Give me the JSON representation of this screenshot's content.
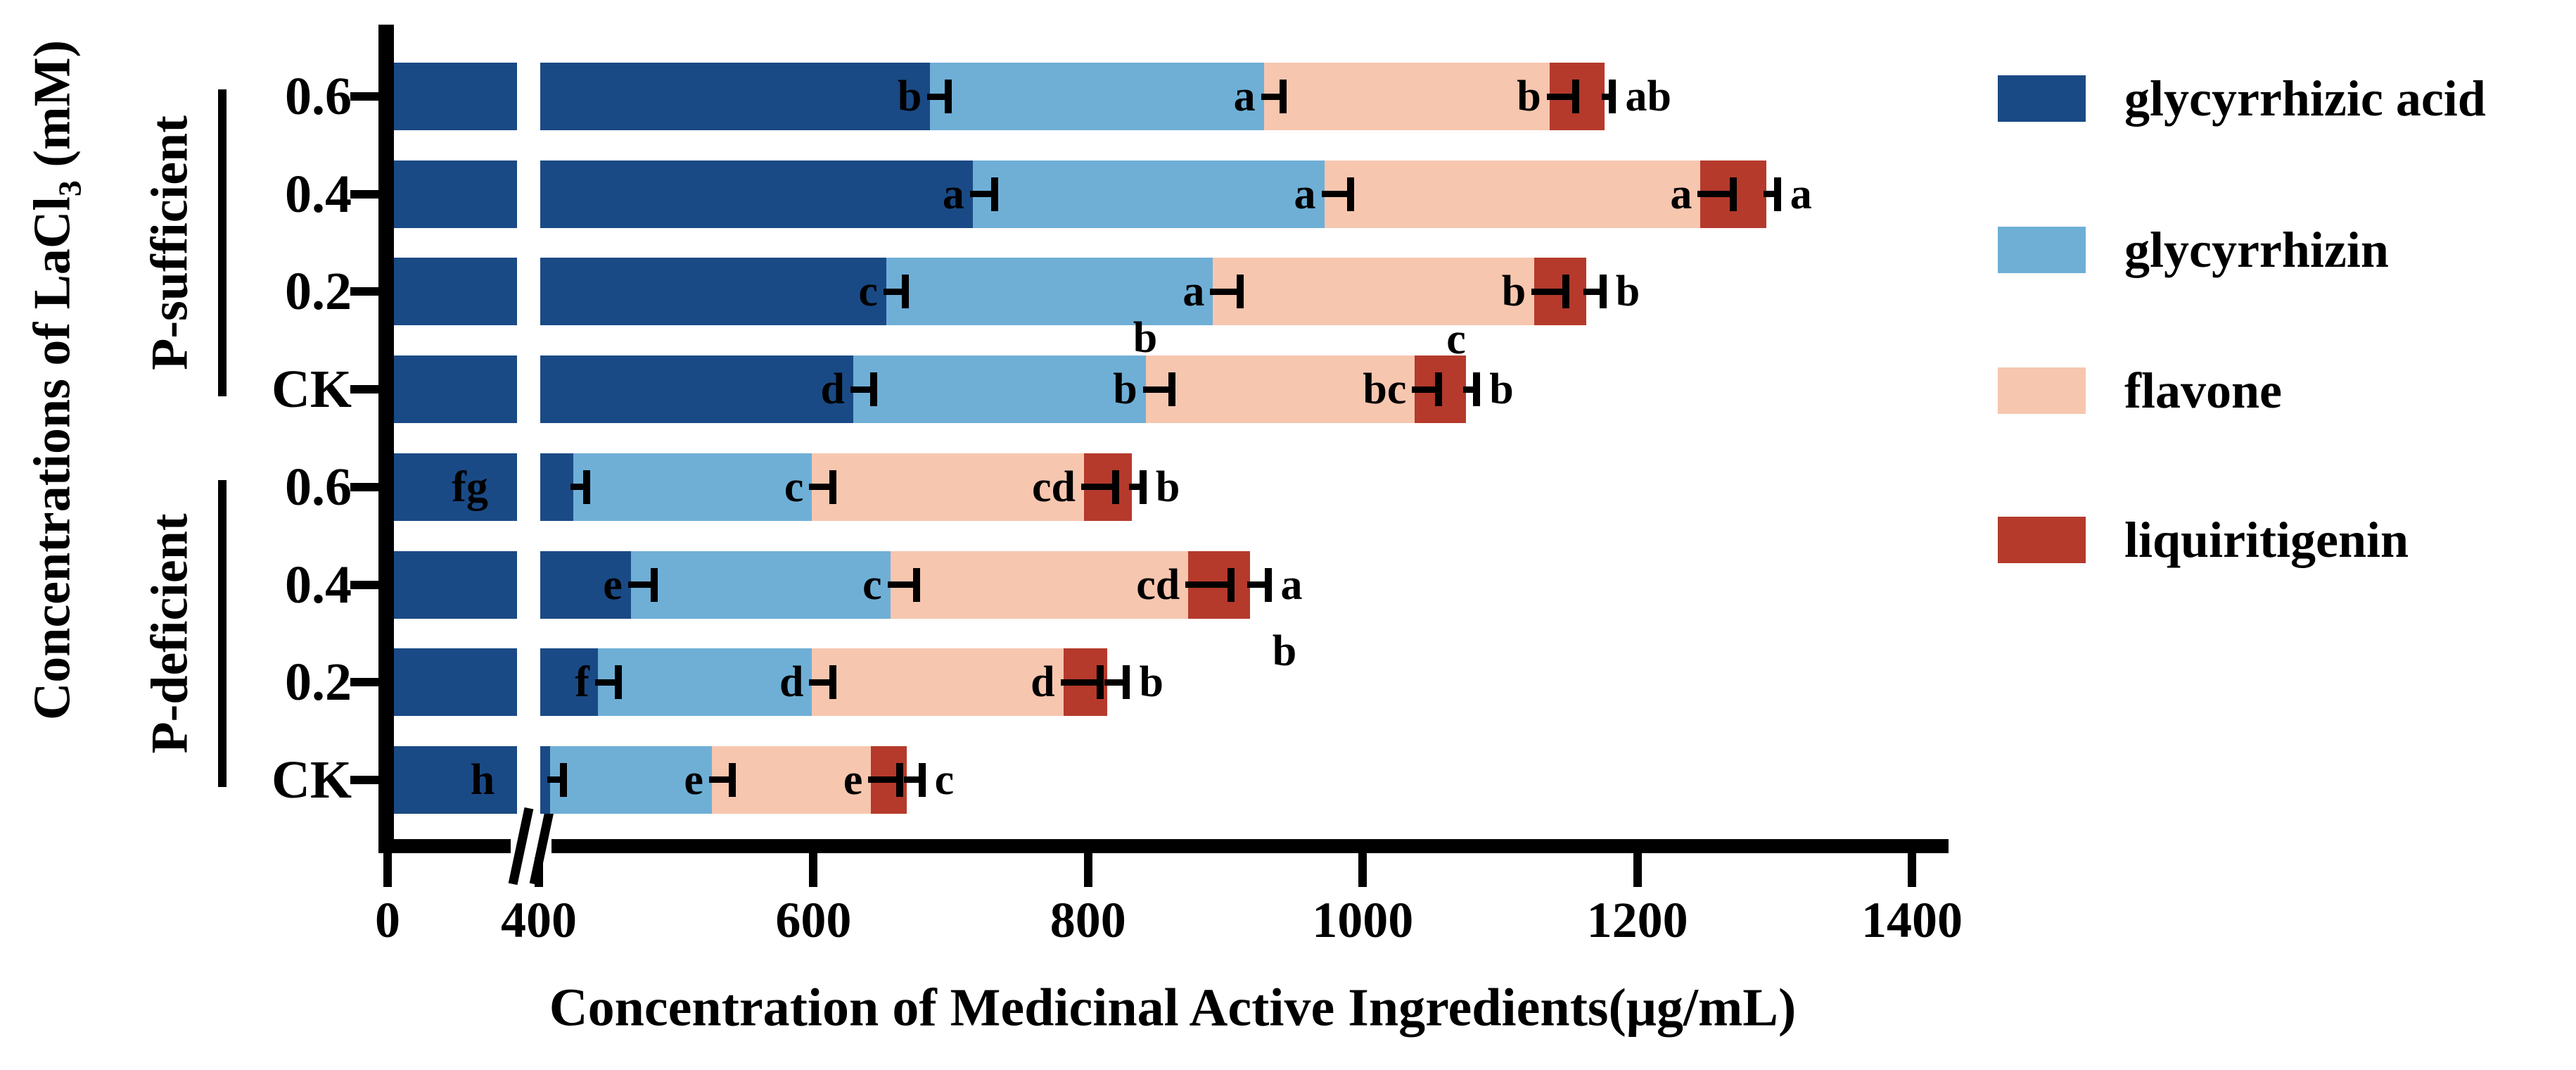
{
  "chart_data": {
    "type": "bar",
    "orientation": "horizontal",
    "stacked": true,
    "xlabel": "Concentration of Medicinal Active Ingredients(μg/mL)",
    "ylabel_parts": {
      "pre": "Concentrations of LaCl",
      "sub": "3",
      "post": " (mM)"
    },
    "x_ticks": [
      0,
      400,
      600,
      800,
      1000,
      1200,
      1400
    ],
    "xlim": [
      0,
      1400
    ],
    "x_axis_break_between": [
      0,
      400
    ],
    "units": "μg/mL",
    "legend_position": "right",
    "series": [
      {
        "name": "glycyrrhizic acid",
        "color": "#1a4a85"
      },
      {
        "name": "glycyrrhizin",
        "color": "#6fafd6"
      },
      {
        "name": "flavone",
        "color": "#f7c6af"
      },
      {
        "name": "liquiritigenin",
        "color": "#b53a2b"
      }
    ],
    "groups": [
      {
        "label": "P-sufficient",
        "rows": [
          {
            "label": "0.6",
            "values": [
              685,
              243,
              208,
              40
            ],
            "errors": [
              13,
              14,
              19,
              6
            ],
            "letters": [
              "b",
              "a",
              "b",
              "ab"
            ]
          },
          {
            "label": "0.4",
            "values": [
              716,
              256,
              274,
              48
            ],
            "errors": [
              16,
              19,
              24,
              8
            ],
            "letters": [
              "a",
              "a",
              "a",
              "a"
            ]
          },
          {
            "label": "0.2",
            "values": [
              653,
              238,
              234,
              38
            ],
            "errors": [
              14,
              20,
              23,
              12
            ],
            "letters": [
              "c",
              "a",
              "b",
              "b"
            ]
          },
          {
            "label": "CK",
            "values": [
              629,
              213,
              196,
              37
            ],
            "errors": [
              15,
              19,
              17,
              8
            ],
            "letters": [
              "d",
              "b",
              "bc",
              "b"
            ]
          }
        ]
      },
      {
        "label": "P-deficient",
        "rows": [
          {
            "label": "0.6",
            "values": [
              425,
              174,
              198,
              35
            ],
            "errors": [
              10,
              15,
              23,
              8
            ],
            "letters": [
              "fg",
              "c",
              "cd",
              "b"
            ],
            "letter_x_px": {
              "0": 668
            }
          },
          {
            "label": "0.4",
            "values": [
              467,
              189,
              217,
              45
            ],
            "errors": [
              17,
              19,
              31,
              13
            ],
            "letters": [
              "e",
              "c",
              "cd",
              "a"
            ]
          },
          {
            "label": "0.2",
            "values": [
              443,
              156,
              183,
              32
            ],
            "errors": [
              15,
              15,
              27,
              14
            ],
            "letters": [
              "f",
              "d",
              "d",
              "b"
            ]
          },
          {
            "label": "CK",
            "values": [
              408,
              118,
              116,
              26
            ],
            "errors": [
              10,
              15,
              21,
              11
            ],
            "letters": [
              "h",
              "e",
              "e",
              "c"
            ],
            "letter_x_px": {
              "0": 686
            }
          }
        ]
      }
    ],
    "annotations": [
      {
        "text": "b",
        "x": 1628,
        "y": 480
      },
      {
        "text": "c",
        "x": 2070,
        "y": 482
      },
      {
        "text": "b",
        "x": 1826,
        "y": 925
      }
    ]
  }
}
